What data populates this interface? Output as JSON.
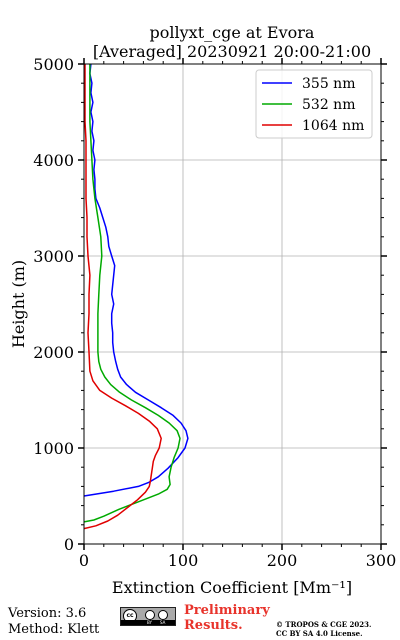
{
  "chart_data": {
    "type": "line",
    "title": "pollyxt_cge at Evora",
    "subtitle": "[Averaged] 20230921 20:00-21:00",
    "xlabel": "Extinction Coefficient [Mm⁻¹]",
    "ylabel": "Height (m)",
    "xlim": [
      0,
      300
    ],
    "ylim": [
      0,
      5000
    ],
    "xticks": [
      0,
      100,
      200,
      300
    ],
    "yticks": [
      0,
      1000,
      2000,
      3000,
      4000,
      5000
    ],
    "grid": true,
    "legend_position": "top-right",
    "series": [
      {
        "name": "355 nm",
        "color": "#0000ff",
        "points": [
          [
            0,
            500
          ],
          [
            30,
            550
          ],
          [
            55,
            600
          ],
          [
            65,
            640
          ],
          [
            75,
            700
          ],
          [
            85,
            790
          ],
          [
            95,
            900
          ],
          [
            102,
            1000
          ],
          [
            105,
            1100
          ],
          [
            103,
            1180
          ],
          [
            98,
            1260
          ],
          [
            90,
            1340
          ],
          [
            78,
            1420
          ],
          [
            65,
            1500
          ],
          [
            52,
            1580
          ],
          [
            43,
            1660
          ],
          [
            37,
            1740
          ],
          [
            34,
            1820
          ],
          [
            32,
            1900
          ],
          [
            30,
            2000
          ],
          [
            29,
            2100
          ],
          [
            29,
            2200
          ],
          [
            28,
            2300
          ],
          [
            28,
            2400
          ],
          [
            30,
            2500
          ],
          [
            28,
            2600
          ],
          [
            29,
            2700
          ],
          [
            30,
            2800
          ],
          [
            31,
            2900
          ],
          [
            28,
            3000
          ],
          [
            25,
            3100
          ],
          [
            24,
            3200
          ],
          [
            22,
            3300
          ],
          [
            19,
            3400
          ],
          [
            16,
            3500
          ],
          [
            12,
            3600
          ],
          [
            11,
            3700
          ],
          [
            11,
            3800
          ],
          [
            10,
            3900
          ],
          [
            11,
            4000
          ],
          [
            9,
            4100
          ],
          [
            10,
            4200
          ],
          [
            8,
            4300
          ],
          [
            9,
            4400
          ],
          [
            7,
            4500
          ],
          [
            9,
            4600
          ],
          [
            7,
            4700
          ],
          [
            8,
            4800
          ],
          [
            6,
            4900
          ],
          [
            7,
            5000
          ]
        ]
      },
      {
        "name": "532 nm",
        "color": "#00aa00",
        "points": [
          [
            0,
            230
          ],
          [
            10,
            250
          ],
          [
            20,
            290
          ],
          [
            35,
            360
          ],
          [
            55,
            440
          ],
          [
            75,
            520
          ],
          [
            84,
            570
          ],
          [
            87,
            620
          ],
          [
            86,
            700
          ],
          [
            88,
            800
          ],
          [
            91,
            900
          ],
          [
            95,
            1000
          ],
          [
            97,
            1100
          ],
          [
            94,
            1180
          ],
          [
            86,
            1260
          ],
          [
            75,
            1340
          ],
          [
            62,
            1420
          ],
          [
            48,
            1500
          ],
          [
            36,
            1580
          ],
          [
            27,
            1660
          ],
          [
            21,
            1740
          ],
          [
            17,
            1820
          ],
          [
            15,
            1900
          ],
          [
            14,
            2000
          ],
          [
            14,
            2200
          ],
          [
            14,
            2400
          ],
          [
            15,
            2600
          ],
          [
            16,
            2800
          ],
          [
            18,
            3000
          ],
          [
            17,
            3200
          ],
          [
            14,
            3400
          ],
          [
            11,
            3600
          ],
          [
            9,
            3800
          ],
          [
            8,
            4000
          ],
          [
            7,
            4200
          ],
          [
            6,
            4400
          ],
          [
            6,
            4600
          ],
          [
            6,
            4800
          ],
          [
            6,
            5000
          ]
        ]
      },
      {
        "name": "1064 nm",
        "color": "#e00000",
        "points": [
          [
            0,
            160
          ],
          [
            12,
            190
          ],
          [
            24,
            240
          ],
          [
            34,
            300
          ],
          [
            44,
            380
          ],
          [
            54,
            460
          ],
          [
            62,
            540
          ],
          [
            66,
            600
          ],
          [
            67,
            650
          ],
          [
            68,
            720
          ],
          [
            69,
            790
          ],
          [
            70,
            860
          ],
          [
            72,
            920
          ],
          [
            76,
            1000
          ],
          [
            78,
            1100
          ],
          [
            74,
            1200
          ],
          [
            66,
            1280
          ],
          [
            55,
            1360
          ],
          [
            42,
            1440
          ],
          [
            28,
            1520
          ],
          [
            16,
            1600
          ],
          [
            9,
            1700
          ],
          [
            6,
            1800
          ],
          [
            5,
            2000
          ],
          [
            4,
            2200
          ],
          [
            5,
            2400
          ],
          [
            5,
            2600
          ],
          [
            6,
            2800
          ],
          [
            4,
            3000
          ],
          [
            3,
            3200
          ],
          [
            3,
            3400
          ],
          [
            2,
            3600
          ],
          [
            2,
            3800
          ],
          [
            2,
            4000
          ],
          [
            2,
            4200
          ],
          [
            1,
            4400
          ],
          [
            1,
            4600
          ],
          [
            1,
            4800
          ],
          [
            1,
            5000
          ]
        ]
      }
    ]
  },
  "footer": {
    "version": "Version: 3.6",
    "method": "Method: Klett",
    "preliminary_line1": "Preliminary",
    "preliminary_line2": "Results.",
    "copyright_line1": "© TROPOS & CGE 2023.",
    "copyright_line2": "CC BY SA 4.0 License.",
    "license_badge_text": "cc",
    "license_badge_by": "BY",
    "license_badge_sa": "SA"
  }
}
